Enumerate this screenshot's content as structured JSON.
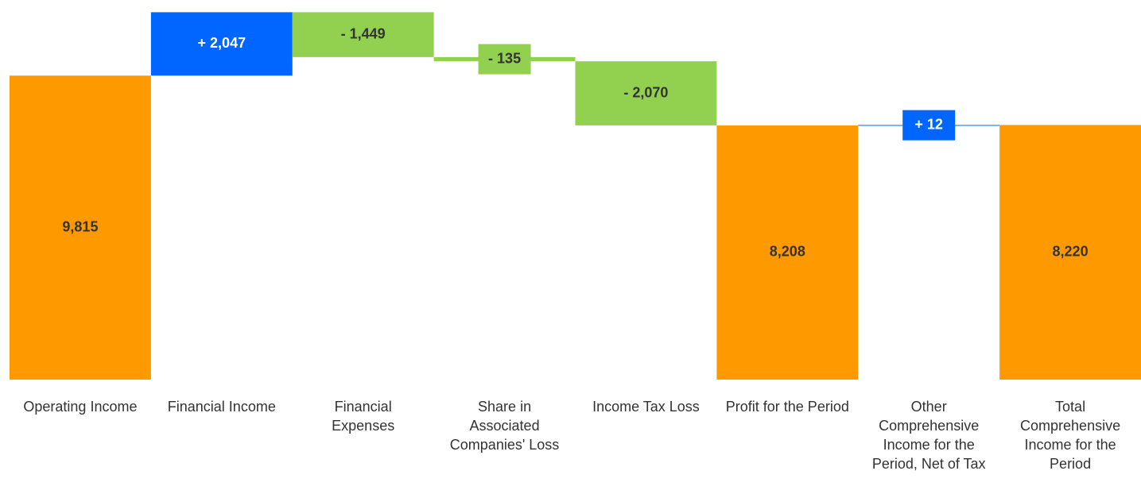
{
  "chart_data": {
    "type": "waterfall",
    "categories": [
      "Operating Income",
      "Financial Income",
      "Financial Expenses",
      "Share in Associated Companies' Loss",
      "Income Tax Loss",
      "Profit for the Period",
      "Other Comprehensive Income for the Period, Net of Tax",
      "Total Comprehensive Income for the Period"
    ],
    "measures": [
      "absolute",
      "relative",
      "relative",
      "relative",
      "relative",
      "absolute",
      "relative",
      "absolute"
    ],
    "values": [
      9815,
      2047,
      -1449,
      -135,
      -2070,
      8208,
      12,
      8220
    ],
    "value_labels": [
      "9,815",
      "+ 2,047",
      "- 1,449",
      "- 135",
      "- 2,070",
      "8,208",
      "+ 12",
      "8,220"
    ],
    "colors": {
      "total": "#ff9900",
      "increase": "#0066ff",
      "decrease": "#92d050"
    },
    "ylim": [
      0,
      12000
    ]
  }
}
